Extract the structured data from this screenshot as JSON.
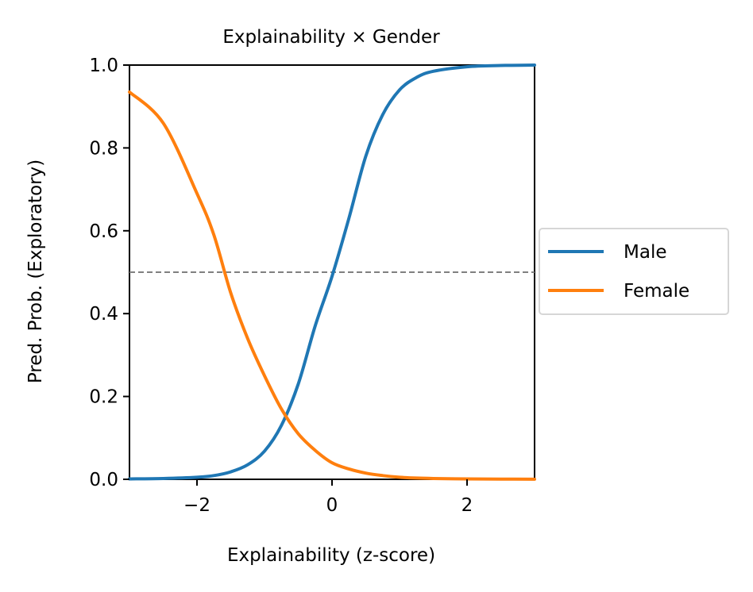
{
  "chart_data": {
    "type": "line",
    "title": "Explainability × Gender",
    "xlabel": "Explainability (z-score)",
    "ylabel": "Pred. Prob. (Exploratory)",
    "xlim": [
      -3,
      3
    ],
    "ylim": [
      0,
      1
    ],
    "xticks": [
      -2,
      0,
      2
    ],
    "xtick_labels": [
      "−2",
      "0",
      "2"
    ],
    "yticks": [
      0,
      0.2,
      0.4,
      0.6,
      0.8,
      1.0
    ],
    "ytick_labels": [
      "0.0",
      "0.2",
      "0.4",
      "0.6",
      "0.8",
      "1.0"
    ],
    "grid": false,
    "legend_position": "outside right",
    "reference_line": {
      "y": 0.5,
      "style": "dashed",
      "color": "#808080"
    },
    "x": [
      -3.0,
      -2.5,
      -2.0,
      -1.75,
      -1.5,
      -1.25,
      -1.0,
      -0.75,
      -0.5,
      -0.25,
      0.0,
      0.25,
      0.5,
      0.75,
      1.0,
      1.25,
      1.5,
      2.0,
      2.5,
      3.0
    ],
    "series": [
      {
        "name": "Male",
        "color": "#1f77b4",
        "values": [
          0.001,
          0.002,
          0.005,
          0.009,
          0.018,
          0.035,
          0.068,
          0.13,
          0.23,
          0.37,
          0.49,
          0.63,
          0.78,
          0.88,
          0.94,
          0.97,
          0.985,
          0.996,
          0.999,
          1.0
        ]
      },
      {
        "name": "Female",
        "color": "#ff7f0e",
        "values": [
          0.935,
          0.86,
          0.69,
          0.59,
          0.45,
          0.34,
          0.25,
          0.17,
          0.11,
          0.07,
          0.04,
          0.025,
          0.015,
          0.009,
          0.005,
          0.003,
          0.002,
          0.001,
          0.0005,
          0.0002
        ]
      }
    ]
  }
}
